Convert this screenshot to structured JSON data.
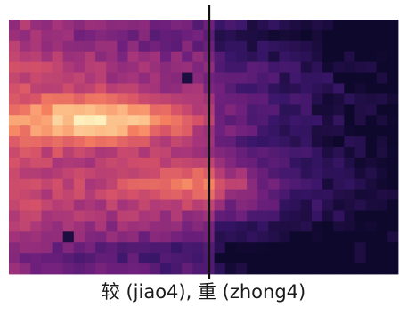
{
  "chart_data": {
    "type": "heatmap",
    "colormap": "magma",
    "rows": 24,
    "columns": 36,
    "divider_after_column": 19,
    "caption": "较 (jiao4), 重 (zhong4)",
    "peak_regions": [
      {
        "rows": [
          8,
          10
        ],
        "columns": [
          3,
          15
        ]
      },
      {
        "rows": [
          13,
          17
        ],
        "columns": [
          13,
          21
        ]
      }
    ],
    "dark_spots": [
      {
        "row": 5,
        "column": 16
      },
      {
        "row": 5,
        "column": 34
      },
      {
        "row": 20,
        "column": 5
      },
      {
        "row": 21,
        "column": 32
      },
      {
        "row": 22,
        "column": 32
      },
      {
        "row": 20,
        "column": 35
      }
    ]
  }
}
